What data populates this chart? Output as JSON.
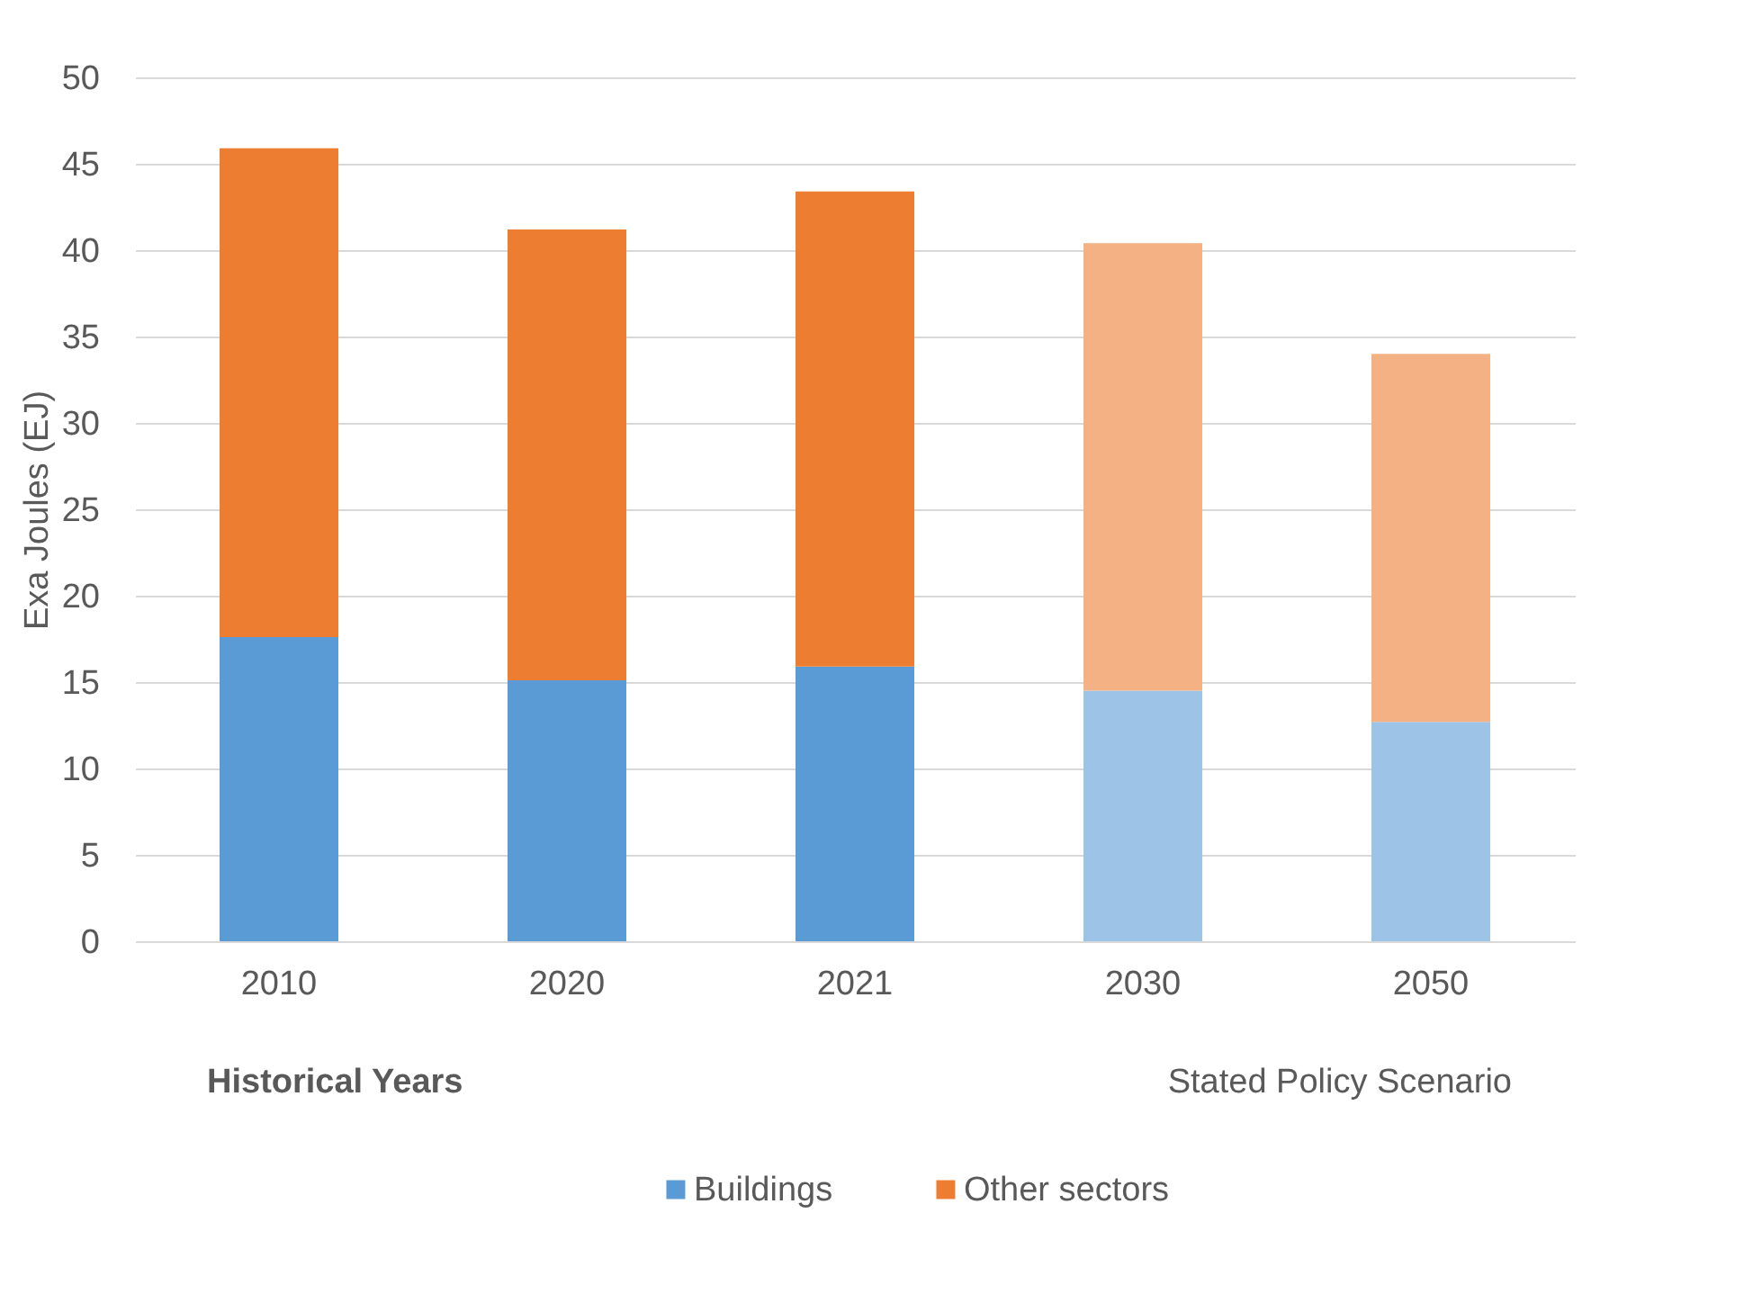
{
  "chart_data": {
    "type": "bar",
    "stacked": true,
    "ylabel": "Exa Joules (EJ)",
    "categories": [
      "2010",
      "2020",
      "2021",
      "2030",
      "2050"
    ],
    "series": [
      {
        "name": "Buildings",
        "color": "#5b9bd5",
        "colors": [
          "#5b9bd5",
          "#5b9bd5",
          "#5b9bd5",
          "#9dc3e6",
          "#9dc3e6"
        ],
        "values": [
          17.6,
          15.1,
          15.9,
          14.5,
          12.7
        ]
      },
      {
        "name": "Other sectors",
        "color": "#ed7d31",
        "colors": [
          "#ed7d31",
          "#ed7d31",
          "#ed7d31",
          "#f4b183",
          "#f4b183"
        ],
        "values": [
          28.3,
          26.1,
          27.5,
          25.9,
          21.3
        ]
      }
    ],
    "ylim": [
      0,
      50
    ],
    "yticks": [
      0,
      5,
      10,
      15,
      20,
      25,
      30,
      35,
      40,
      45,
      50
    ],
    "grid": "y",
    "legend": "bottom",
    "annotations": [
      "Historical Years",
      "Stated Policy Scenario"
    ]
  }
}
